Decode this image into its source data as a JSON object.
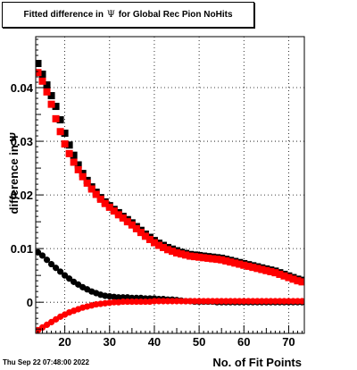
{
  "title": {
    "prefix": "Fitted difference in",
    "symbol": "Ψ",
    "suffix": "for Global Rec Pion NoHits"
  },
  "timestamp": "Thu Sep 22 07:48:00 2022",
  "chart_data": {
    "type": "scatter",
    "xlabel": "No. of Fit Points",
    "ylabel": "difference in Ψ",
    "xlim": [
      13.5,
      73.5
    ],
    "ylim": [
      -0.0058,
      0.0495
    ],
    "xticks": [
      20,
      30,
      40,
      50,
      60,
      70
    ],
    "yticks": [
      0,
      0.01,
      0.02,
      0.03,
      0.04
    ],
    "ytick_labels": [
      "0",
      "0.01",
      "0.02",
      "0.03",
      "0.04"
    ],
    "grid": true,
    "series": [
      {
        "marker": "square",
        "color": "#000000",
        "x": [
          14,
          15,
          16,
          17,
          18,
          19,
          20,
          21,
          22,
          23,
          24,
          25,
          26,
          27,
          28,
          29,
          30,
          31,
          32,
          33,
          34,
          35,
          36,
          37,
          38,
          39,
          40,
          41,
          42,
          43,
          44,
          45,
          46,
          47,
          48,
          49,
          50,
          51,
          52,
          53,
          54,
          55,
          56,
          57,
          58,
          59,
          60,
          61,
          62,
          63,
          64,
          65,
          66,
          67,
          68,
          69,
          70,
          71,
          72,
          73
        ],
        "y": [
          0.0445,
          0.0425,
          0.0405,
          0.0385,
          0.0365,
          0.034,
          0.0315,
          0.0293,
          0.0274,
          0.0256,
          0.024,
          0.0227,
          0.0215,
          0.0205,
          0.0195,
          0.0187,
          0.018,
          0.0173,
          0.0167,
          0.016,
          0.0154,
          0.0148,
          0.0141,
          0.0134,
          0.0127,
          0.0121,
          0.0115,
          0.011,
          0.0106,
          0.0102,
          0.0099,
          0.0096,
          0.0093,
          0.0091,
          0.0089,
          0.0088,
          0.0087,
          0.0086,
          0.0085,
          0.0084,
          0.0083,
          0.0082,
          0.008,
          0.0078,
          0.0076,
          0.0074,
          0.0072,
          0.007,
          0.0068,
          0.0066,
          0.0064,
          0.0062,
          0.006,
          0.0058,
          0.0055,
          0.0052,
          0.0049,
          0.0046,
          0.0043,
          0.0041
        ]
      },
      {
        "marker": "square",
        "color": "#ff0000",
        "x": [
          14,
          15,
          16,
          17,
          18,
          19,
          20,
          21,
          22,
          23,
          24,
          25,
          26,
          27,
          28,
          29,
          30,
          31,
          32,
          33,
          34,
          35,
          36,
          37,
          38,
          39,
          40,
          41,
          42,
          43,
          44,
          45,
          46,
          47,
          48,
          49,
          50,
          51,
          52,
          53,
          54,
          55,
          56,
          57,
          58,
          59,
          60,
          61,
          62,
          63,
          64,
          65,
          66,
          67,
          68,
          69,
          70,
          71,
          72,
          73
        ],
        "y": [
          0.0428,
          0.0412,
          0.0392,
          0.0369,
          0.0342,
          0.0318,
          0.0295,
          0.0277,
          0.0261,
          0.0247,
          0.0234,
          0.0222,
          0.0211,
          0.0201,
          0.0192,
          0.0184,
          0.0177,
          0.017,
          0.0163,
          0.0157,
          0.015,
          0.0144,
          0.0137,
          0.013,
          0.0123,
          0.0117,
          0.0111,
          0.0106,
          0.0102,
          0.0098,
          0.0095,
          0.0092,
          0.009,
          0.0088,
          0.0086,
          0.0085,
          0.0084,
          0.0083,
          0.0082,
          0.0081,
          0.008,
          0.0079,
          0.0077,
          0.0075,
          0.0073,
          0.0071,
          0.0069,
          0.0067,
          0.0065,
          0.0063,
          0.0061,
          0.0059,
          0.0057,
          0.0055,
          0.0052,
          0.0049,
          0.0046,
          0.0043,
          0.004,
          0.0038
        ]
      },
      {
        "marker": "circle",
        "color": "#000000",
        "x": [
          14,
          15,
          16,
          17,
          18,
          19,
          20,
          21,
          22,
          23,
          24,
          25,
          26,
          27,
          28,
          29,
          30,
          31,
          32,
          33,
          34,
          35,
          36,
          37,
          38,
          39,
          40,
          41,
          42,
          43,
          44,
          45,
          46,
          47,
          48,
          49,
          50,
          51,
          52,
          53,
          54,
          55,
          56,
          57,
          58,
          59,
          60,
          61,
          62,
          63,
          64,
          65,
          66,
          67,
          68,
          69,
          70,
          71,
          72,
          73
        ],
        "y": [
          0.0093,
          0.0087,
          0.0079,
          0.0071,
          0.0064,
          0.0057,
          0.005,
          0.0044,
          0.0038,
          0.0033,
          0.0028,
          0.0024,
          0.002,
          0.0017,
          0.0014,
          0.0012,
          0.0011,
          0.001,
          0.0009,
          0.0009,
          0.0009,
          0.0008,
          0.0008,
          0.0008,
          0.0007,
          0.0007,
          0.0007,
          0.0006,
          0.0006,
          0.0005,
          0.0005,
          0.0004,
          0.0003,
          0.0002,
          0.0002,
          0.0001,
          0.0001,
          0.0001,
          0.0001,
          0.0001,
          0.0,
          0.0,
          0.0,
          0.0,
          0.0,
          0.0,
          0.0,
          0.0,
          0.0,
          0.0,
          0.0,
          0.0,
          0.0,
          0.0,
          0.0,
          0.0,
          0.0,
          0.0,
          0.0,
          0.0
        ]
      },
      {
        "marker": "circle",
        "color": "#ff0000",
        "x": [
          14,
          15,
          16,
          17,
          18,
          19,
          20,
          21,
          22,
          23,
          24,
          25,
          26,
          27,
          28,
          29,
          30,
          31,
          32,
          33,
          34,
          35,
          36,
          37,
          38,
          39,
          40,
          41,
          42,
          43,
          44,
          45,
          46,
          47,
          48,
          49,
          50,
          51,
          52,
          53,
          54,
          55,
          56,
          57,
          58,
          59,
          60,
          61,
          62,
          63,
          64,
          65,
          66,
          67,
          68,
          69,
          70,
          71,
          72,
          73
        ],
        "y": [
          -0.0052,
          -0.0047,
          -0.0042,
          -0.0037,
          -0.0032,
          -0.0027,
          -0.0023,
          -0.0019,
          -0.0016,
          -0.0013,
          -0.001,
          -0.0008,
          -0.0006,
          -0.0004,
          -0.0003,
          -0.0002,
          -0.0001,
          0.0,
          0.0,
          0.0001,
          0.0001,
          0.0001,
          0.0001,
          0.0001,
          0.0001,
          0.0001,
          0.0002,
          0.0002,
          0.0002,
          0.0002,
          0.0002,
          0.0002,
          0.0002,
          0.0002,
          0.0002,
          0.0002,
          0.0002,
          0.0002,
          0.0002,
          0.0002,
          0.0002,
          0.0002,
          0.0002,
          0.0002,
          0.0002,
          0.0002,
          0.0002,
          0.0002,
          0.0002,
          0.0002,
          0.0002,
          0.0002,
          0.0002,
          0.0002,
          0.0002,
          0.0002,
          0.0002,
          0.0002,
          0.0002,
          0.0002
        ]
      }
    ]
  }
}
